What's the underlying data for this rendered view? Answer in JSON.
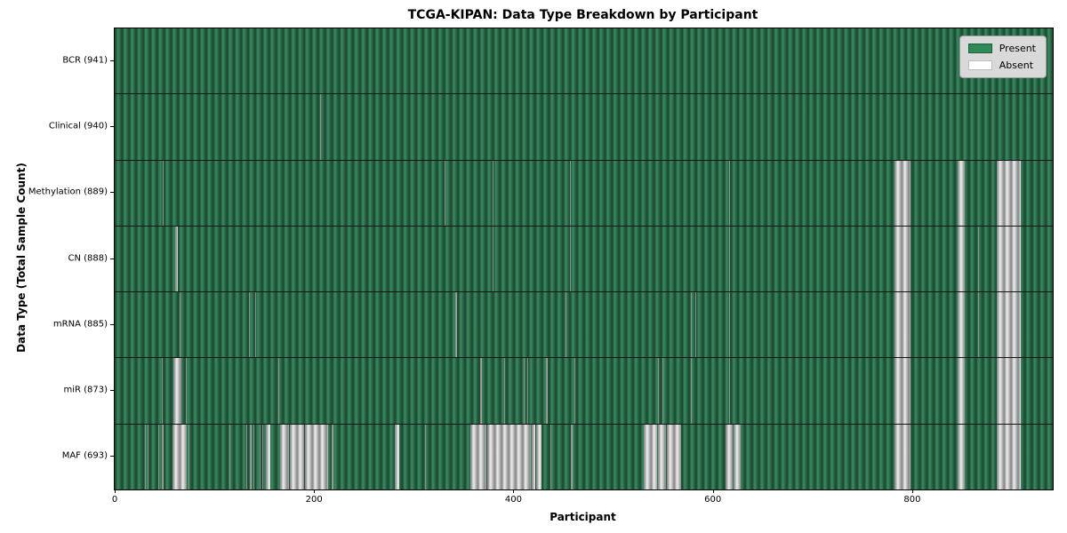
{
  "title": "TCGA-KIPAN: Data Type Breakdown by Participant",
  "xlabel": "Participant",
  "ylabel": "Data Type (Total Sample Count)",
  "legend": {
    "present_label": "Present",
    "absent_label": "Absent"
  },
  "colors": {
    "present": "#2e8b57",
    "present_dark": "#1c4e34",
    "present_mid": "#2d7050",
    "present_light": "#3a8a5e",
    "absent_dark": "#8f8f8f",
    "absent_mid": "#c6c6c6",
    "absent_light": "#ededed",
    "legend_bg": "#d9d9d9"
  },
  "chart_data": {
    "type": "heatmap",
    "title": "TCGA-KIPAN: Data Type Breakdown by Participant",
    "xlabel": "Participant",
    "ylabel": "Data Type (Total Sample Count)",
    "x_range": [
      0,
      941
    ],
    "x_ticks": [
      0,
      200,
      400,
      600,
      800
    ],
    "total_participants": 941,
    "legend_entries": [
      "Present",
      "Absent"
    ],
    "legend_position": "upper right",
    "rows": [
      {
        "data_type": "BCR",
        "label": "BCR (941)",
        "present_count": 941,
        "absent_ranges": []
      },
      {
        "data_type": "Clinical",
        "label": "Clinical (940)",
        "present_count": 940,
        "absent_ranges": [
          [
            206,
            206
          ]
        ]
      },
      {
        "data_type": "Methylation",
        "label": "Methylation (889)",
        "present_count": 889,
        "absent_ranges": [
          [
            48,
            48
          ],
          [
            331,
            331
          ],
          [
            379,
            379
          ],
          [
            457,
            457
          ],
          [
            616,
            616
          ],
          [
            782,
            797
          ],
          [
            846,
            852
          ],
          [
            885,
            908
          ]
        ]
      },
      {
        "data_type": "CN",
        "label": "CN (888)",
        "present_count": 888,
        "absent_ranges": [
          [
            61,
            62
          ],
          [
            379,
            379
          ],
          [
            457,
            457
          ],
          [
            616,
            616
          ],
          [
            782,
            797
          ],
          [
            846,
            852
          ],
          [
            866,
            866
          ],
          [
            885,
            908
          ]
        ]
      },
      {
        "data_type": "mRNA",
        "label": "mRNA (885)",
        "present_count": 885,
        "absent_ranges": [
          [
            65,
            65
          ],
          [
            135,
            135
          ],
          [
            141,
            141
          ],
          [
            342,
            342
          ],
          [
            452,
            452
          ],
          [
            578,
            578
          ],
          [
            582,
            582
          ],
          [
            616,
            616
          ],
          [
            782,
            797
          ],
          [
            846,
            852
          ],
          [
            866,
            866
          ],
          [
            885,
            908
          ]
        ]
      },
      {
        "data_type": "miR",
        "label": "miR (873)",
        "present_count": 873,
        "absent_ranges": [
          [
            47,
            47
          ],
          [
            59,
            66
          ],
          [
            71,
            71
          ],
          [
            164,
            164
          ],
          [
            367,
            367
          ],
          [
            391,
            391
          ],
          [
            410,
            410
          ],
          [
            414,
            414
          ],
          [
            433,
            433
          ],
          [
            461,
            461
          ],
          [
            545,
            545
          ],
          [
            549,
            549
          ],
          [
            578,
            578
          ],
          [
            616,
            616
          ],
          [
            782,
            797
          ],
          [
            846,
            852
          ],
          [
            885,
            908
          ]
        ]
      },
      {
        "data_type": "MAF",
        "label": "MAF (693)",
        "present_count": 693,
        "absent_ranges": [
          [
            30,
            30
          ],
          [
            33,
            33
          ],
          [
            44,
            44
          ],
          [
            47,
            48
          ],
          [
            58,
            71
          ],
          [
            74,
            74
          ],
          [
            115,
            115
          ],
          [
            132,
            132
          ],
          [
            136,
            136
          ],
          [
            139,
            139
          ],
          [
            145,
            145
          ],
          [
            148,
            148
          ],
          [
            152,
            155
          ],
          [
            166,
            174
          ],
          [
            176,
            189
          ],
          [
            191,
            213
          ],
          [
            218,
            218
          ],
          [
            281,
            284
          ],
          [
            311,
            311
          ],
          [
            357,
            372
          ],
          [
            374,
            416
          ],
          [
            418,
            421
          ],
          [
            423,
            427
          ],
          [
            437,
            437
          ],
          [
            458,
            458
          ],
          [
            531,
            543
          ],
          [
            545,
            552
          ],
          [
            554,
            567
          ],
          [
            613,
            619
          ],
          [
            621,
            627
          ],
          [
            782,
            797
          ],
          [
            846,
            852
          ],
          [
            885,
            908
          ]
        ]
      }
    ]
  }
}
